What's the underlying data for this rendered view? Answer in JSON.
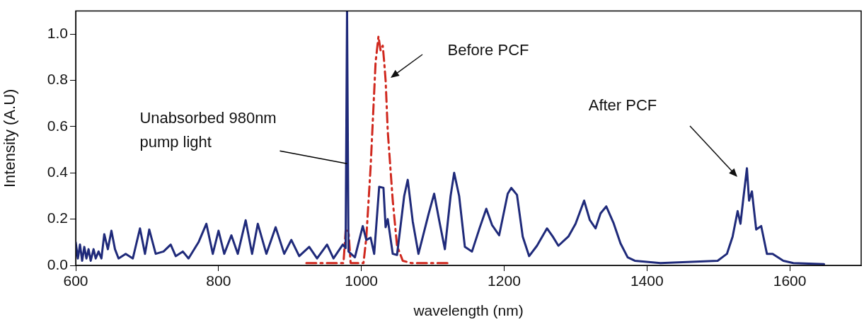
{
  "chart_data": {
    "type": "line",
    "xlabel": "wavelength (nm)",
    "ylabel": "Intensity (A.U)",
    "xlim": [
      600,
      1700
    ],
    "xticks": [
      600,
      800,
      1000,
      1200,
      1400,
      1600
    ],
    "ylim": [
      0,
      1.1
    ],
    "yticks": [
      {
        "value": 0,
        "label": "0.0"
      },
      0.2,
      0.4,
      0.6,
      0.8,
      {
        "value": 1,
        "label": "1.0"
      }
    ],
    "grid": false,
    "legend": false,
    "marker": "none",
    "series": [
      {
        "color": "#1f2a7a",
        "line_style": "solid",
        "x": [
          600,
          603,
          606,
          609,
          612,
          615,
          618,
          621,
          625,
          628,
          632,
          636,
          640,
          645,
          650,
          655,
          660,
          670,
          680,
          690,
          697,
          703,
          712,
          723,
          733,
          740,
          750,
          758,
          772,
          783,
          792,
          800,
          808,
          818,
          827,
          838,
          847,
          855,
          867,
          880,
          892,
          902,
          913,
          927,
          938,
          952,
          961,
          974,
          978,
          980,
          982,
          991,
          1002,
          1007,
          1013,
          1018,
          1025,
          1031,
          1034,
          1037,
          1044,
          1050,
          1060,
          1065,
          1072,
          1080,
          1094,
          1102,
          1109,
          1117,
          1125,
          1130,
          1137,
          1145,
          1155,
          1166,
          1175,
          1183,
          1193,
          1205,
          1210,
          1218,
          1226,
          1235,
          1246,
          1260,
          1268,
          1276,
          1290,
          1300,
          1312,
          1320,
          1328,
          1335,
          1343,
          1353,
          1363,
          1373,
          1383,
          1419,
          1499,
          1512,
          1520,
          1527,
          1531,
          1535,
          1540,
          1543,
          1547,
          1553,
          1560,
          1568,
          1576,
          1591,
          1605,
          1648
        ],
        "values": [
          0.1,
          0.03,
          0.09,
          0.02,
          0.08,
          0.03,
          0.07,
          0.02,
          0.07,
          0.03,
          0.06,
          0.03,
          0.135,
          0.07,
          0.15,
          0.07,
          0.03,
          0.05,
          0.03,
          0.16,
          0.05,
          0.155,
          0.05,
          0.06,
          0.09,
          0.04,
          0.06,
          0.03,
          0.1,
          0.18,
          0.05,
          0.15,
          0.05,
          0.13,
          0.05,
          0.195,
          0.05,
          0.18,
          0.05,
          0.165,
          0.05,
          0.11,
          0.04,
          0.08,
          0.03,
          0.09,
          0.03,
          0.09,
          0.075,
          1.1,
          0.06,
          0.035,
          0.17,
          0.11,
          0.12,
          0.05,
          0.34,
          0.335,
          0.165,
          0.2,
          0.05,
          0.045,
          0.3,
          0.37,
          0.19,
          0.05,
          0.22,
          0.31,
          0.195,
          0.07,
          0.3,
          0.4,
          0.3,
          0.08,
          0.06,
          0.165,
          0.245,
          0.175,
          0.13,
          0.31,
          0.335,
          0.305,
          0.125,
          0.04,
          0.085,
          0.16,
          0.125,
          0.085,
          0.125,
          0.18,
          0.28,
          0.196,
          0.16,
          0.225,
          0.255,
          0.185,
          0.095,
          0.035,
          0.02,
          0.01,
          0.02,
          0.05,
          0.125,
          0.235,
          0.18,
          0.29,
          0.42,
          0.28,
          0.32,
          0.155,
          0.17,
          0.05,
          0.05,
          0.02,
          0.01,
          0.005
        ]
      },
      {
        "color": "#d0281e",
        "line_style": "dashed",
        "x": [
          923,
          975,
          978,
          980,
          982,
          985,
          1003,
          1007,
          1013,
          1020,
          1024,
          1027,
          1030,
          1032,
          1034,
          1037,
          1044,
          1050,
          1058,
          1070,
          1121
        ],
        "values": [
          0.01,
          0.01,
          0.15,
          0.15,
          0.15,
          0.01,
          0.01,
          0.12,
          0.425,
          0.88,
          0.99,
          0.93,
          0.95,
          0.88,
          0.8,
          0.58,
          0.28,
          0.085,
          0.02,
          0.01,
          0.01
        ]
      }
    ],
    "annotations": [
      {
        "text": "Unabsorbed 980nm pump light",
        "x": 980,
        "y": 0.44
      },
      "Before PCF",
      "After PCF"
    ]
  }
}
